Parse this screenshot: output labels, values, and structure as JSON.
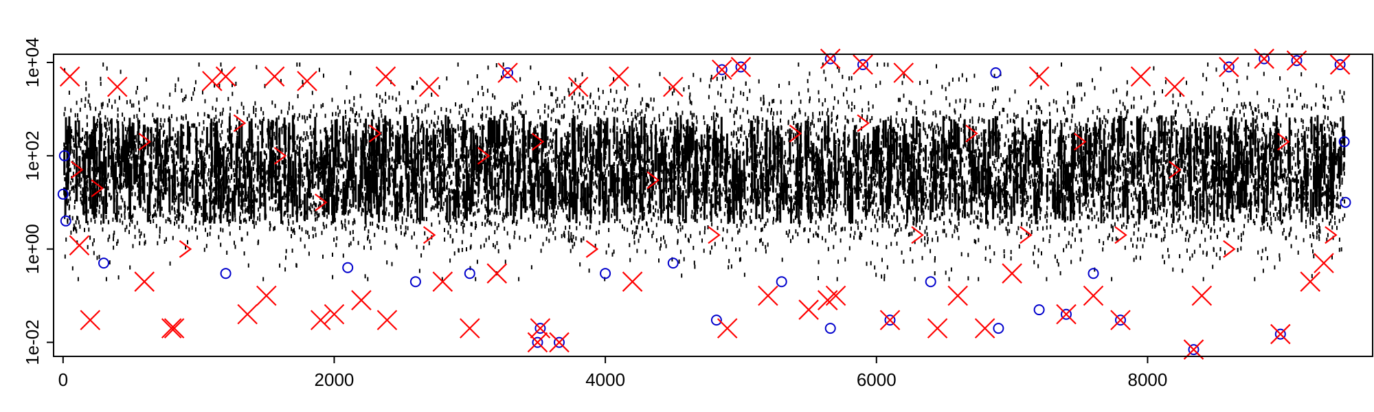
{
  "chart_data": {
    "type": "scatter",
    "title": "",
    "xlabel": "",
    "ylabel": "",
    "xlim": [
      -70,
      9660
    ],
    "ylim": [
      0.005,
      15000
    ],
    "y_scale": "log",
    "grid": false,
    "legend": "none",
    "x_ticks": [
      0,
      2000,
      4000,
      6000,
      8000
    ],
    "x_tick_labels": [
      "0",
      "2000",
      "4000",
      "6000",
      "8000"
    ],
    "y_ticks": [
      0.01,
      1,
      100,
      10000
    ],
    "y_tick_labels": [
      "1e-02",
      "1e+00",
      "1e+02",
      "1e+04"
    ],
    "x_range": [
      0,
      9450
    ],
    "series": [
      {
        "marker": "dot",
        "color": "#000000",
        "typical_range": [
          0.5,
          5000
        ]
      },
      {
        "marker": "circle",
        "color": "#0000cc",
        "points": [
          [
            0,
            15
          ],
          [
            10,
            100
          ],
          [
            20,
            4
          ],
          [
            3280,
            6000
          ],
          [
            3500,
            0.01
          ],
          [
            3520,
            0.02
          ],
          [
            3660,
            0.01
          ],
          [
            4000,
            0.3
          ],
          [
            4500,
            0.5
          ],
          [
            4820,
            0.03
          ],
          [
            4860,
            7000
          ],
          [
            5000,
            8000
          ],
          [
            5660,
            12000
          ],
          [
            5660,
            0.02
          ],
          [
            5900,
            9000
          ],
          [
            6100,
            0.03
          ],
          [
            6880,
            6000
          ],
          [
            6900,
            0.02
          ],
          [
            7200,
            0.05
          ],
          [
            7400,
            0.04
          ],
          [
            7800,
            0.03
          ],
          [
            8340,
            0.007
          ],
          [
            8600,
            8000
          ],
          [
            8860,
            12000
          ],
          [
            8980,
            0.015
          ],
          [
            9100,
            11000
          ],
          [
            9420,
            9000
          ],
          [
            9450,
            200
          ],
          [
            9460,
            10
          ],
          [
            300,
            0.5
          ],
          [
            1200,
            0.3
          ],
          [
            2100,
            0.4
          ],
          [
            2600,
            0.2
          ],
          [
            3000,
            0.3
          ],
          [
            5300,
            0.2
          ],
          [
            6400,
            0.2
          ],
          [
            7600,
            0.3
          ]
        ]
      },
      {
        "marker": "cross",
        "color": "#ff0000",
        "points": [
          [
            50,
            5000
          ],
          [
            120,
            1.2
          ],
          [
            200,
            0.03
          ],
          [
            400,
            3000
          ],
          [
            800,
            0.02
          ],
          [
            820,
            0.02
          ],
          [
            1100,
            4000
          ],
          [
            1200,
            5000
          ],
          [
            1360,
            0.04
          ],
          [
            1560,
            5000
          ],
          [
            1800,
            4000
          ],
          [
            1900,
            0.03
          ],
          [
            2000,
            0.04
          ],
          [
            2380,
            5000
          ],
          [
            2390,
            0.03
          ],
          [
            2700,
            3000
          ],
          [
            3000,
            0.02
          ],
          [
            3280,
            6000
          ],
          [
            3500,
            0.01
          ],
          [
            3520,
            0.02
          ],
          [
            3660,
            0.01
          ],
          [
            3800,
            3000
          ],
          [
            4100,
            5000
          ],
          [
            4500,
            3000
          ],
          [
            4860,
            7000
          ],
          [
            4900,
            0.02
          ],
          [
            5000,
            8000
          ],
          [
            5500,
            0.05
          ],
          [
            5640,
            0.08
          ],
          [
            5660,
            12000
          ],
          [
            5700,
            0.1
          ],
          [
            5900,
            9000
          ],
          [
            6100,
            0.03
          ],
          [
            6200,
            6000
          ],
          [
            6450,
            0.02
          ],
          [
            6800,
            0.02
          ],
          [
            7200,
            5000
          ],
          [
            7400,
            0.04
          ],
          [
            7800,
            0.03
          ],
          [
            7950,
            5000
          ],
          [
            8200,
            3000
          ],
          [
            8340,
            0.007
          ],
          [
            8600,
            8000
          ],
          [
            8860,
            12000
          ],
          [
            8980,
            0.015
          ],
          [
            9100,
            11000
          ],
          [
            9420,
            9000
          ],
          [
            9300,
            0.5
          ],
          [
            600,
            0.2
          ],
          [
            1500,
            0.1
          ],
          [
            2200,
            0.08
          ],
          [
            2800,
            0.2
          ],
          [
            3200,
            0.3
          ],
          [
            4200,
            0.2
          ],
          [
            5200,
            0.1
          ],
          [
            6600,
            0.1
          ],
          [
            7000,
            0.3
          ],
          [
            7600,
            0.1
          ],
          [
            8400,
            0.1
          ],
          [
            9200,
            0.2
          ]
        ]
      },
      {
        "marker": "chevron",
        "color": "#ff0000",
        "points": [
          [
            100,
            50
          ],
          [
            250,
            20
          ],
          [
            600,
            200
          ],
          [
            900,
            1
          ],
          [
            1300,
            500
          ],
          [
            1600,
            100
          ],
          [
            1900,
            10
          ],
          [
            2300,
            300
          ],
          [
            2700,
            2
          ],
          [
            3100,
            100
          ],
          [
            3500,
            200
          ],
          [
            3900,
            1
          ],
          [
            4350,
            30
          ],
          [
            4800,
            2
          ],
          [
            5400,
            300
          ],
          [
            5900,
            500
          ],
          [
            6300,
            2
          ],
          [
            6700,
            300
          ],
          [
            7100,
            2
          ],
          [
            7500,
            200
          ],
          [
            7800,
            2
          ],
          [
            8200,
            50
          ],
          [
            8600,
            1
          ],
          [
            9000,
            200
          ],
          [
            9350,
            2
          ]
        ]
      }
    ]
  }
}
